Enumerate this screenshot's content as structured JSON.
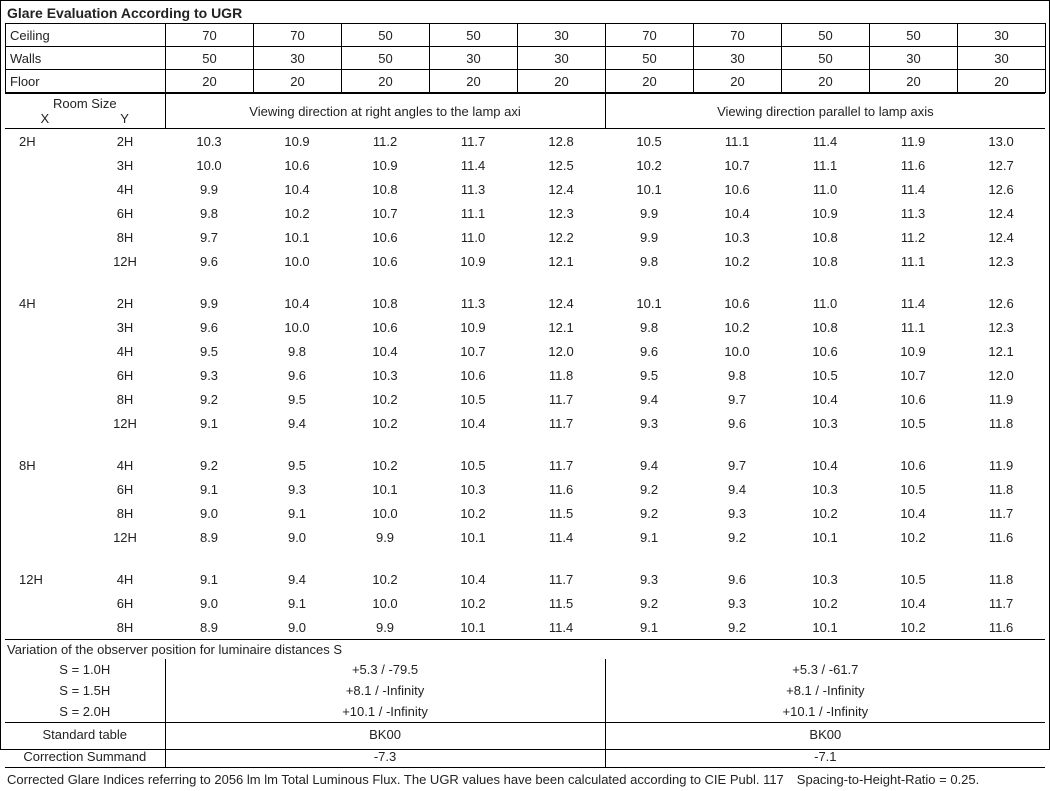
{
  "title": "Glare Evaluation According to UGR",
  "header_rows": [
    {
      "label": "Ceiling",
      "vals": [
        "70",
        "70",
        "50",
        "50",
        "30",
        "70",
        "70",
        "50",
        "50",
        "30"
      ]
    },
    {
      "label": "Walls",
      "vals": [
        "50",
        "30",
        "50",
        "30",
        "30",
        "50",
        "30",
        "50",
        "30",
        "30"
      ]
    },
    {
      "label": "Floor",
      "vals": [
        "20",
        "20",
        "20",
        "20",
        "20",
        "20",
        "20",
        "20",
        "20",
        "20"
      ]
    }
  ],
  "roomsize_label": "Room Size",
  "x_label": "X",
  "y_label": "Y",
  "dir_right_angles": "Viewing direction at right angles to the lamp axi",
  "dir_parallel": "Viewing direction parallel to lamp axis",
  "groups": [
    {
      "x": "2H",
      "rows": [
        {
          "y": "2H",
          "v": [
            "10.3",
            "10.9",
            "11.2",
            "11.7",
            "12.8",
            "10.5",
            "11.1",
            "11.4",
            "11.9",
            "13.0"
          ]
        },
        {
          "y": "3H",
          "v": [
            "10.0",
            "10.6",
            "10.9",
            "11.4",
            "12.5",
            "10.2",
            "10.7",
            "11.1",
            "11.6",
            "12.7"
          ]
        },
        {
          "y": "4H",
          "v": [
            "9.9",
            "10.4",
            "10.8",
            "11.3",
            "12.4",
            "10.1",
            "10.6",
            "11.0",
            "11.4",
            "12.6"
          ]
        },
        {
          "y": "6H",
          "v": [
            "9.8",
            "10.2",
            "10.7",
            "11.1",
            "12.3",
            "9.9",
            "10.4",
            "10.9",
            "11.3",
            "12.4"
          ]
        },
        {
          "y": "8H",
          "v": [
            "9.7",
            "10.1",
            "10.6",
            "11.0",
            "12.2",
            "9.9",
            "10.3",
            "10.8",
            "11.2",
            "12.4"
          ]
        },
        {
          "y": "12H",
          "v": [
            "9.6",
            "10.0",
            "10.6",
            "10.9",
            "12.1",
            "9.8",
            "10.2",
            "10.8",
            "11.1",
            "12.3"
          ]
        }
      ]
    },
    {
      "x": "4H",
      "rows": [
        {
          "y": "2H",
          "v": [
            "9.9",
            "10.4",
            "10.8",
            "11.3",
            "12.4",
            "10.1",
            "10.6",
            "11.0",
            "11.4",
            "12.6"
          ]
        },
        {
          "y": "3H",
          "v": [
            "9.6",
            "10.0",
            "10.6",
            "10.9",
            "12.1",
            "9.8",
            "10.2",
            "10.8",
            "11.1",
            "12.3"
          ]
        },
        {
          "y": "4H",
          "v": [
            "9.5",
            "9.8",
            "10.4",
            "10.7",
            "12.0",
            "9.6",
            "10.0",
            "10.6",
            "10.9",
            "12.1"
          ]
        },
        {
          "y": "6H",
          "v": [
            "9.3",
            "9.6",
            "10.3",
            "10.6",
            "11.8",
            "9.5",
            "9.8",
            "10.5",
            "10.7",
            "12.0"
          ]
        },
        {
          "y": "8H",
          "v": [
            "9.2",
            "9.5",
            "10.2",
            "10.5",
            "11.7",
            "9.4",
            "9.7",
            "10.4",
            "10.6",
            "11.9"
          ]
        },
        {
          "y": "12H",
          "v": [
            "9.1",
            "9.4",
            "10.2",
            "10.4",
            "11.7",
            "9.3",
            "9.6",
            "10.3",
            "10.5",
            "11.8"
          ]
        }
      ]
    },
    {
      "x": "8H",
      "rows": [
        {
          "y": "4H",
          "v": [
            "9.2",
            "9.5",
            "10.2",
            "10.5",
            "11.7",
            "9.4",
            "9.7",
            "10.4",
            "10.6",
            "11.9"
          ]
        },
        {
          "y": "6H",
          "v": [
            "9.1",
            "9.3",
            "10.1",
            "10.3",
            "11.6",
            "9.2",
            "9.4",
            "10.3",
            "10.5",
            "11.8"
          ]
        },
        {
          "y": "8H",
          "v": [
            "9.0",
            "9.1",
            "10.0",
            "10.2",
            "11.5",
            "9.2",
            "9.3",
            "10.2",
            "10.4",
            "11.7"
          ]
        },
        {
          "y": "12H",
          "v": [
            "8.9",
            "9.0",
            "9.9",
            "10.1",
            "11.4",
            "9.1",
            "9.2",
            "10.1",
            "10.2",
            "11.6"
          ]
        }
      ]
    },
    {
      "x": "12H",
      "rows": [
        {
          "y": "4H",
          "v": [
            "9.1",
            "9.4",
            "10.2",
            "10.4",
            "11.7",
            "9.3",
            "9.6",
            "10.3",
            "10.5",
            "11.8"
          ]
        },
        {
          "y": "6H",
          "v": [
            "9.0",
            "9.1",
            "10.0",
            "10.2",
            "11.5",
            "9.2",
            "9.3",
            "10.2",
            "10.4",
            "11.7"
          ]
        },
        {
          "y": "8H",
          "v": [
            "8.9",
            "9.0",
            "9.9",
            "10.1",
            "11.4",
            "9.1",
            "9.2",
            "10.1",
            "10.2",
            "11.6"
          ]
        }
      ]
    }
  ],
  "variation_title": "Variation of the observer position for luminaire distances S",
  "variation_rows": [
    {
      "label": "S = 1.0H",
      "left": "+5.3 / -79.5",
      "right": "+5.3 / -61.7"
    },
    {
      "label": "S = 1.5H",
      "left": "+8.1 / -Infinity",
      "right": "+8.1 / -Infinity"
    },
    {
      "label": "S = 2.0H",
      "left": "+10.1 / -Infinity",
      "right": "+10.1 / -Infinity"
    }
  ],
  "standard": {
    "label": "Standard table",
    "left": "BK00",
    "right": "BK00",
    "label2": "Correction Summand",
    "left2": "-7.3",
    "right2": "-7.1"
  },
  "footnote": "Corrected Glare Indices referring to 2056 lm lm Total Luminous Flux. The UGR values have been calculated according to CIE Publ. 117 Spacing-to-Height-Ratio = 0.25.",
  "col_widths": {
    "room": "160",
    "data": "88"
  }
}
